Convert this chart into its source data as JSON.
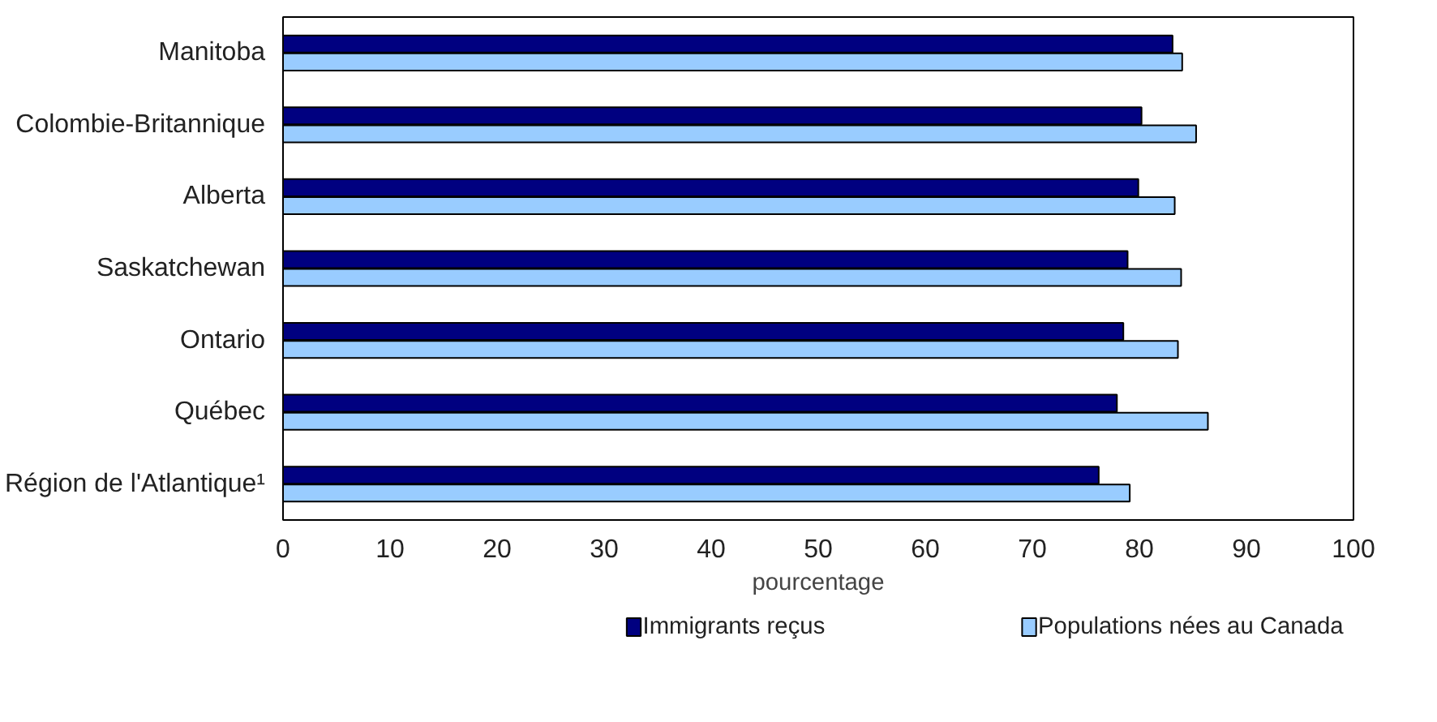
{
  "chart_data": {
    "type": "bar",
    "orientation": "horizontal",
    "xlabel": "pourcentage",
    "categories": [
      "Manitoba",
      "Colombie-Britannique",
      "Alberta",
      "Saskatchewan",
      "Ontario",
      "Québec",
      "Région de l'Atlantique¹"
    ],
    "series": [
      {
        "name": "Immigrants reçus",
        "color": "#000080",
        "values": [
          83.1,
          80.2,
          79.9,
          78.9,
          78.5,
          77.9,
          76.2
        ]
      },
      {
        "name": "Populations nées au Canada",
        "color": "#99ccff",
        "values": [
          84.0,
          85.3,
          83.3,
          83.9,
          83.6,
          86.4,
          79.1
        ]
      }
    ],
    "xlim": [
      0,
      100
    ],
    "xticks": [
      0,
      10,
      20,
      30,
      40,
      50,
      60,
      70,
      80,
      90,
      100
    ],
    "grid": false,
    "legend": "bottom"
  }
}
